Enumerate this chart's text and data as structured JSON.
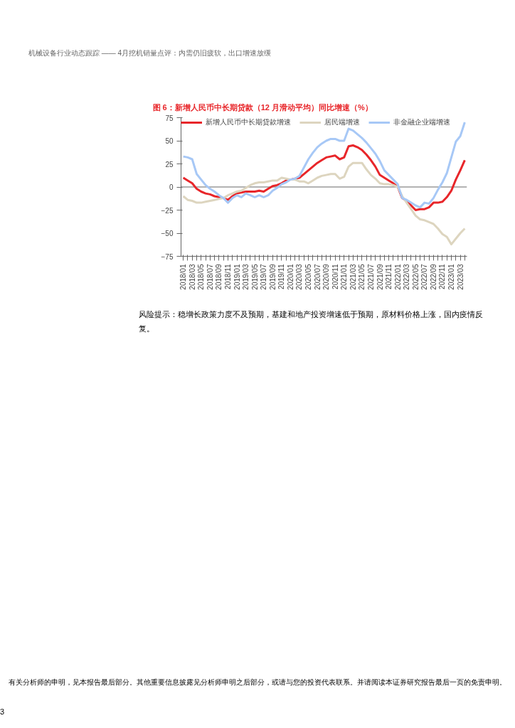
{
  "chart_data": {
    "type": "line",
    "title": "图 6：新增人民币中长期贷款（12 月滑动平均）同比增速（%）",
    "categories": [
      "2018/01",
      null,
      "2018/03",
      null,
      "2018/05",
      null,
      "2018/07",
      null,
      "2018/09",
      null,
      "2018/11",
      null,
      "2019/01",
      null,
      "2019/03",
      null,
      "2019/05",
      null,
      "2019/07",
      null,
      "2019/09",
      null,
      "2019/11",
      null,
      "2020/01",
      null,
      "2020/03",
      null,
      "2020/05",
      null,
      "2020/07",
      null,
      "2020/09",
      null,
      "2020/11",
      null,
      "2021/01",
      null,
      "2021/03",
      null,
      "2021/05",
      null,
      "2021/07",
      null,
      "2021/09",
      null,
      "2021/11",
      null,
      "2022/01",
      null,
      "2022/03",
      null,
      "2022/05",
      null,
      "2022/07",
      null,
      "2022/09",
      null,
      "2022/11",
      null,
      "2023/01",
      null,
      "2023/03",
      null
    ],
    "series": [
      {
        "name": "新增人民币中长期贷款增速",
        "color": "#e8262a",
        "values": [
          10,
          7,
          4,
          -2,
          -5,
          -7,
          -8,
          -10,
          -11,
          -12,
          -14,
          -10,
          -7,
          -6,
          -5,
          -5,
          -5,
          -4,
          -5,
          -2,
          1,
          2,
          4,
          7,
          8,
          9,
          10,
          14,
          18,
          22,
          26,
          29,
          32,
          33,
          34,
          30,
          32,
          44,
          45,
          43,
          40,
          35,
          29,
          22,
          13,
          10,
          7,
          4,
          0,
          -12,
          -15,
          -20,
          -25,
          -24,
          -24,
          -22,
          -17,
          -17,
          -16,
          -11,
          -4,
          8,
          18,
          29
        ]
      },
      {
        "name": "居民端增速",
        "color": "#ddd5bf",
        "values": [
          -10,
          -14,
          -15,
          -17,
          -17,
          -16,
          -15,
          -14,
          -13,
          -12,
          -9,
          -7,
          -5,
          -4,
          -1,
          2,
          4,
          5,
          5,
          6,
          7,
          7,
          10,
          9,
          8,
          8,
          6,
          6,
          4,
          7,
          10,
          12,
          13,
          14,
          14,
          9,
          11,
          22,
          26,
          26,
          26,
          19,
          13,
          9,
          4,
          3,
          3,
          2,
          0,
          -10,
          -17,
          -24,
          -31,
          -35,
          -36,
          -38,
          -40,
          -45,
          -51,
          -54,
          -62,
          -56,
          -50,
          -45
        ]
      },
      {
        "name": "非金融企业端增速",
        "color": "#a7c8f6",
        "values": [
          33,
          32,
          30,
          14,
          8,
          2,
          -2,
          -5,
          -9,
          -12,
          -17,
          -12,
          -9,
          -11,
          -7,
          -9,
          -11,
          -9,
          -11,
          -9,
          -4,
          -1,
          3,
          5,
          8,
          9,
          12,
          21,
          30,
          37,
          43,
          47,
          50,
          52,
          52,
          50,
          50,
          63,
          61,
          57,
          53,
          48,
          42,
          36,
          28,
          18,
          13,
          8,
          3,
          -12,
          -14,
          -17,
          -20,
          -22,
          -17,
          -18,
          -12,
          -3,
          5,
          15,
          32,
          49,
          55,
          70
        ]
      }
    ],
    "ylim": [
      -75,
      75
    ],
    "yticks": [
      -75,
      -50,
      -25,
      0,
      25,
      50,
      75
    ],
    "legend": "top",
    "annotations": [
      "机械设备行业动态跟踪 —— 4月挖机销量点评：内需仍旧疲软，出口增速放缓",
      "风险提示：稳增长政策力度不及预期，基建和地产投资增速低于预期，原材料价格上涨，国内疫情反复。",
      "有关分析师的申明，见本报告最后部分。其他重要信息披露见分析师申明之后部分，或请与您的投资代表联系。并请阅读本证券研究报告最后一页的免责申明。",
      "3"
    ]
  }
}
